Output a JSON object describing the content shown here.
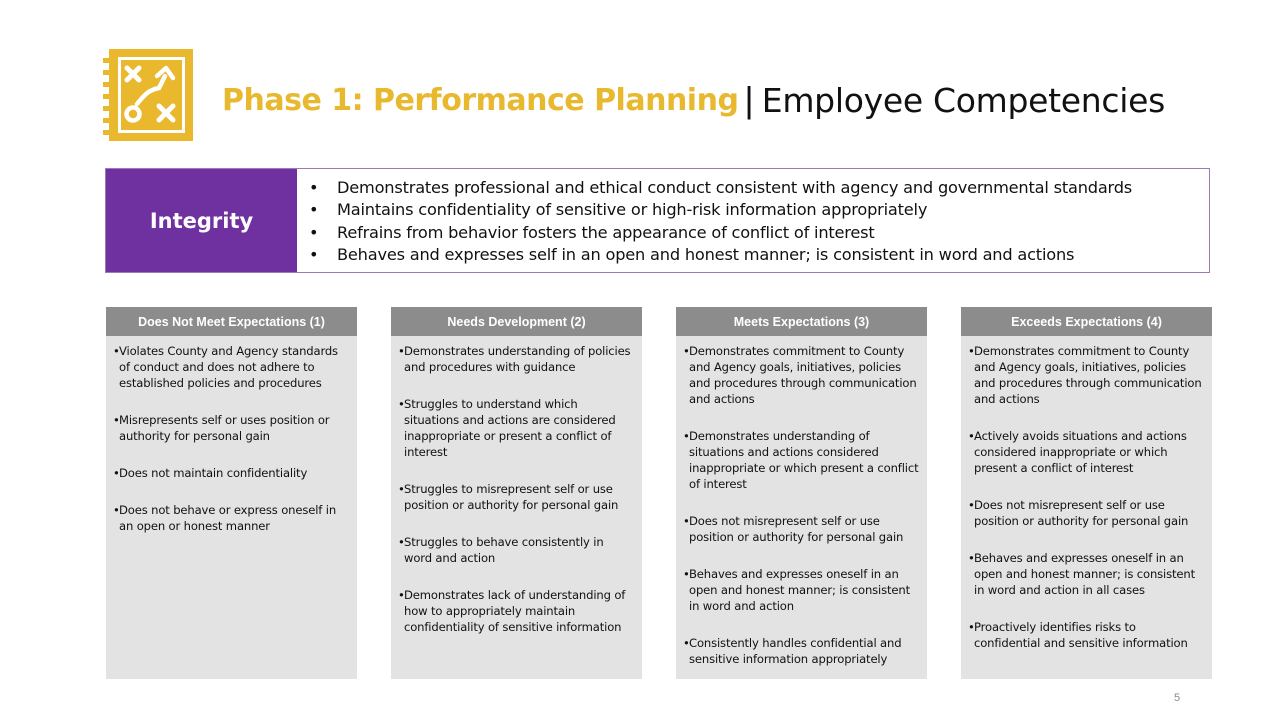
{
  "header": {
    "title_bold": "Phase 1: Performance Planning",
    "separator": "|",
    "title_light": "Employee Competencies",
    "logo_icon": "strategy-play-icon",
    "accent_color": "#e8b92e"
  },
  "integrity": {
    "label": "Integrity",
    "label_bg": "#7031a0",
    "bullets": [
      "Demonstrates professional and ethical conduct consistent with agency and governmental standards",
      "Maintains confidentiality of sensitive or high-risk information appropriately",
      "Refrains from behavior fosters the appearance of conflict of interest",
      "Behaves and expresses self in an open and honest manner; is consistent in word and actions"
    ]
  },
  "columns": [
    {
      "header": "Does Not Meet Expectations  (1)",
      "items": [
        "Violates County and Agency standards of conduct and does not adhere to established policies and procedures",
        "Misrepresents self or uses position or authority for personal gain",
        "Does not maintain confidentiality",
        "Does not behave or express oneself in an open or honest manner"
      ]
    },
    {
      "header": "Needs Development  (2)",
      "items": [
        "Demonstrates understanding of policies and procedures with guidance",
        "Struggles to understand which situations and actions are considered inappropriate or present a conflict of interest",
        "Struggles to misrepresent self or use position or authority for personal gain",
        "Struggles to behave consistently in word and action",
        "Demonstrates lack of understanding of how to appropriately maintain confidentiality of sensitive information"
      ]
    },
    {
      "header": "Meets Expectations  (3)",
      "items": [
        "Demonstrates commitment to County and Agency goals, initiatives, policies and procedures through communication and actions",
        "Demonstrates understanding of situations and actions considered inappropriate or which present a conflict of interest",
        "Does not misrepresent self or use position or authority for personal gain",
        "Behaves and expresses oneself in an open and honest manner; is consistent in word and action",
        "Consistently handles confidential and sensitive information appropriately"
      ]
    },
    {
      "header": "Exceeds Expectations  (4)",
      "items": [
        "Demonstrates commitment to County and Agency goals, initiatives, policies and procedures through communication and actions",
        "Actively avoids situations and actions considered inappropriate or which present a conflict of interest",
        "Does not misrepresent self or use position or authority for personal gain",
        "Behaves and expresses oneself in an open and honest manner; is consistent in word and action in all cases",
        "Proactively identifies risks to confidential and sensitive information"
      ]
    }
  ],
  "footer": {
    "page_number": "5"
  }
}
